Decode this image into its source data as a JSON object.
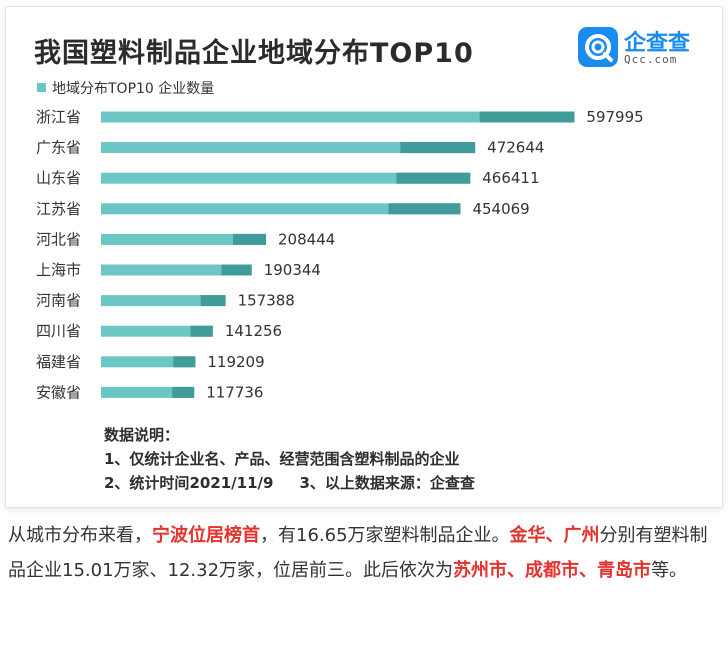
{
  "card": {
    "title": "我国塑料制品企业地域分布TOP10",
    "logo_text": "企查查",
    "logo_sub": "Qcc.com",
    "legend_label": "地域分布TOP10 企业数量",
    "notes": {
      "heading": "数据说明：",
      "item1": "1、仅统计企业名、产品、经营范围含塑料制品的企业",
      "item2": "2、统计时间2021/11/9",
      "item3": "3、以上数据来源：企查查"
    }
  },
  "chart_data": {
    "type": "bar",
    "orientation": "horizontal",
    "categories": [
      "浙江省",
      "广东省",
      "山东省",
      "江苏省",
      "河北省",
      "上海市",
      "河南省",
      "四川省",
      "福建省",
      "安徽省"
    ],
    "series": [
      {
        "name": "地域分布TOP10 企业数量",
        "values": [
          597995,
          472644,
          466411,
          454069,
          208444,
          190344,
          157388,
          141256,
          119209,
          117736
        ]
      }
    ],
    "data_labels": [
      "597995",
      "472644",
      "466411",
      "454069",
      "208444",
      "190344",
      "157388",
      "141256",
      "119209",
      "117736"
    ],
    "xlim": [
      0,
      600000
    ],
    "legend_position": "top-left",
    "grid": false,
    "colors": {
      "bar_light": "#6cc6c3",
      "bar_dark": "#3f9c99"
    }
  },
  "article": {
    "part1": "从城市分布来看，",
    "hl1": "宁波位居榜首",
    "part2": "，有16.65万家塑料制品企业。",
    "hl2": "金华、广州",
    "part3": "分别有塑料制品企业15.01万家、12.32万家，位居前三。此后依次为",
    "hl3": "苏州市、成都市、青岛市",
    "part4": "等。",
    "highlight_color": "#e5322d"
  }
}
